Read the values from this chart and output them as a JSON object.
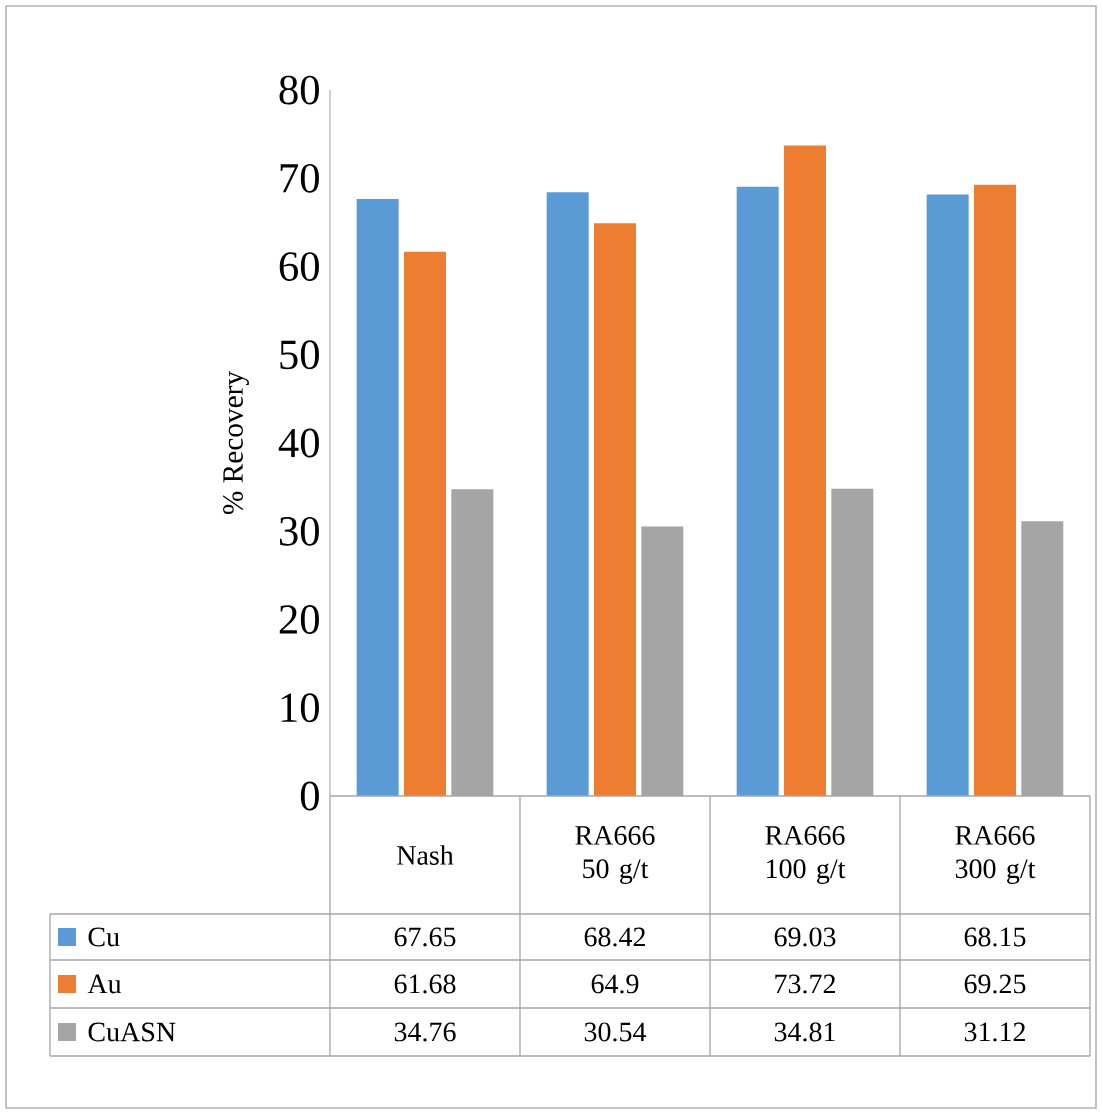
{
  "chart_data": {
    "type": "bar",
    "ylabel": "% Recovery",
    "categories": [
      "Nash",
      "RA666 50 g/t",
      "RA666 100 g/t",
      "RA666 300 g/t"
    ],
    "series": [
      {
        "name": "Cu",
        "color": "#5b9bd5",
        "values": [
          67.65,
          68.42,
          69.03,
          68.15
        ]
      },
      {
        "name": "Au",
        "color": "#ed7d31",
        "values": [
          61.68,
          64.9,
          73.72,
          69.25
        ]
      },
      {
        "name": "CuASN",
        "color": "#a5a5a5",
        "values": [
          34.76,
          30.54,
          34.81,
          31.12
        ]
      }
    ],
    "ylim": [
      0,
      80
    ],
    "yticks": [
      0,
      10,
      20,
      30,
      40,
      50,
      60,
      70,
      80
    ],
    "data_labels": true,
    "legend": "bottom",
    "grid": false
  }
}
